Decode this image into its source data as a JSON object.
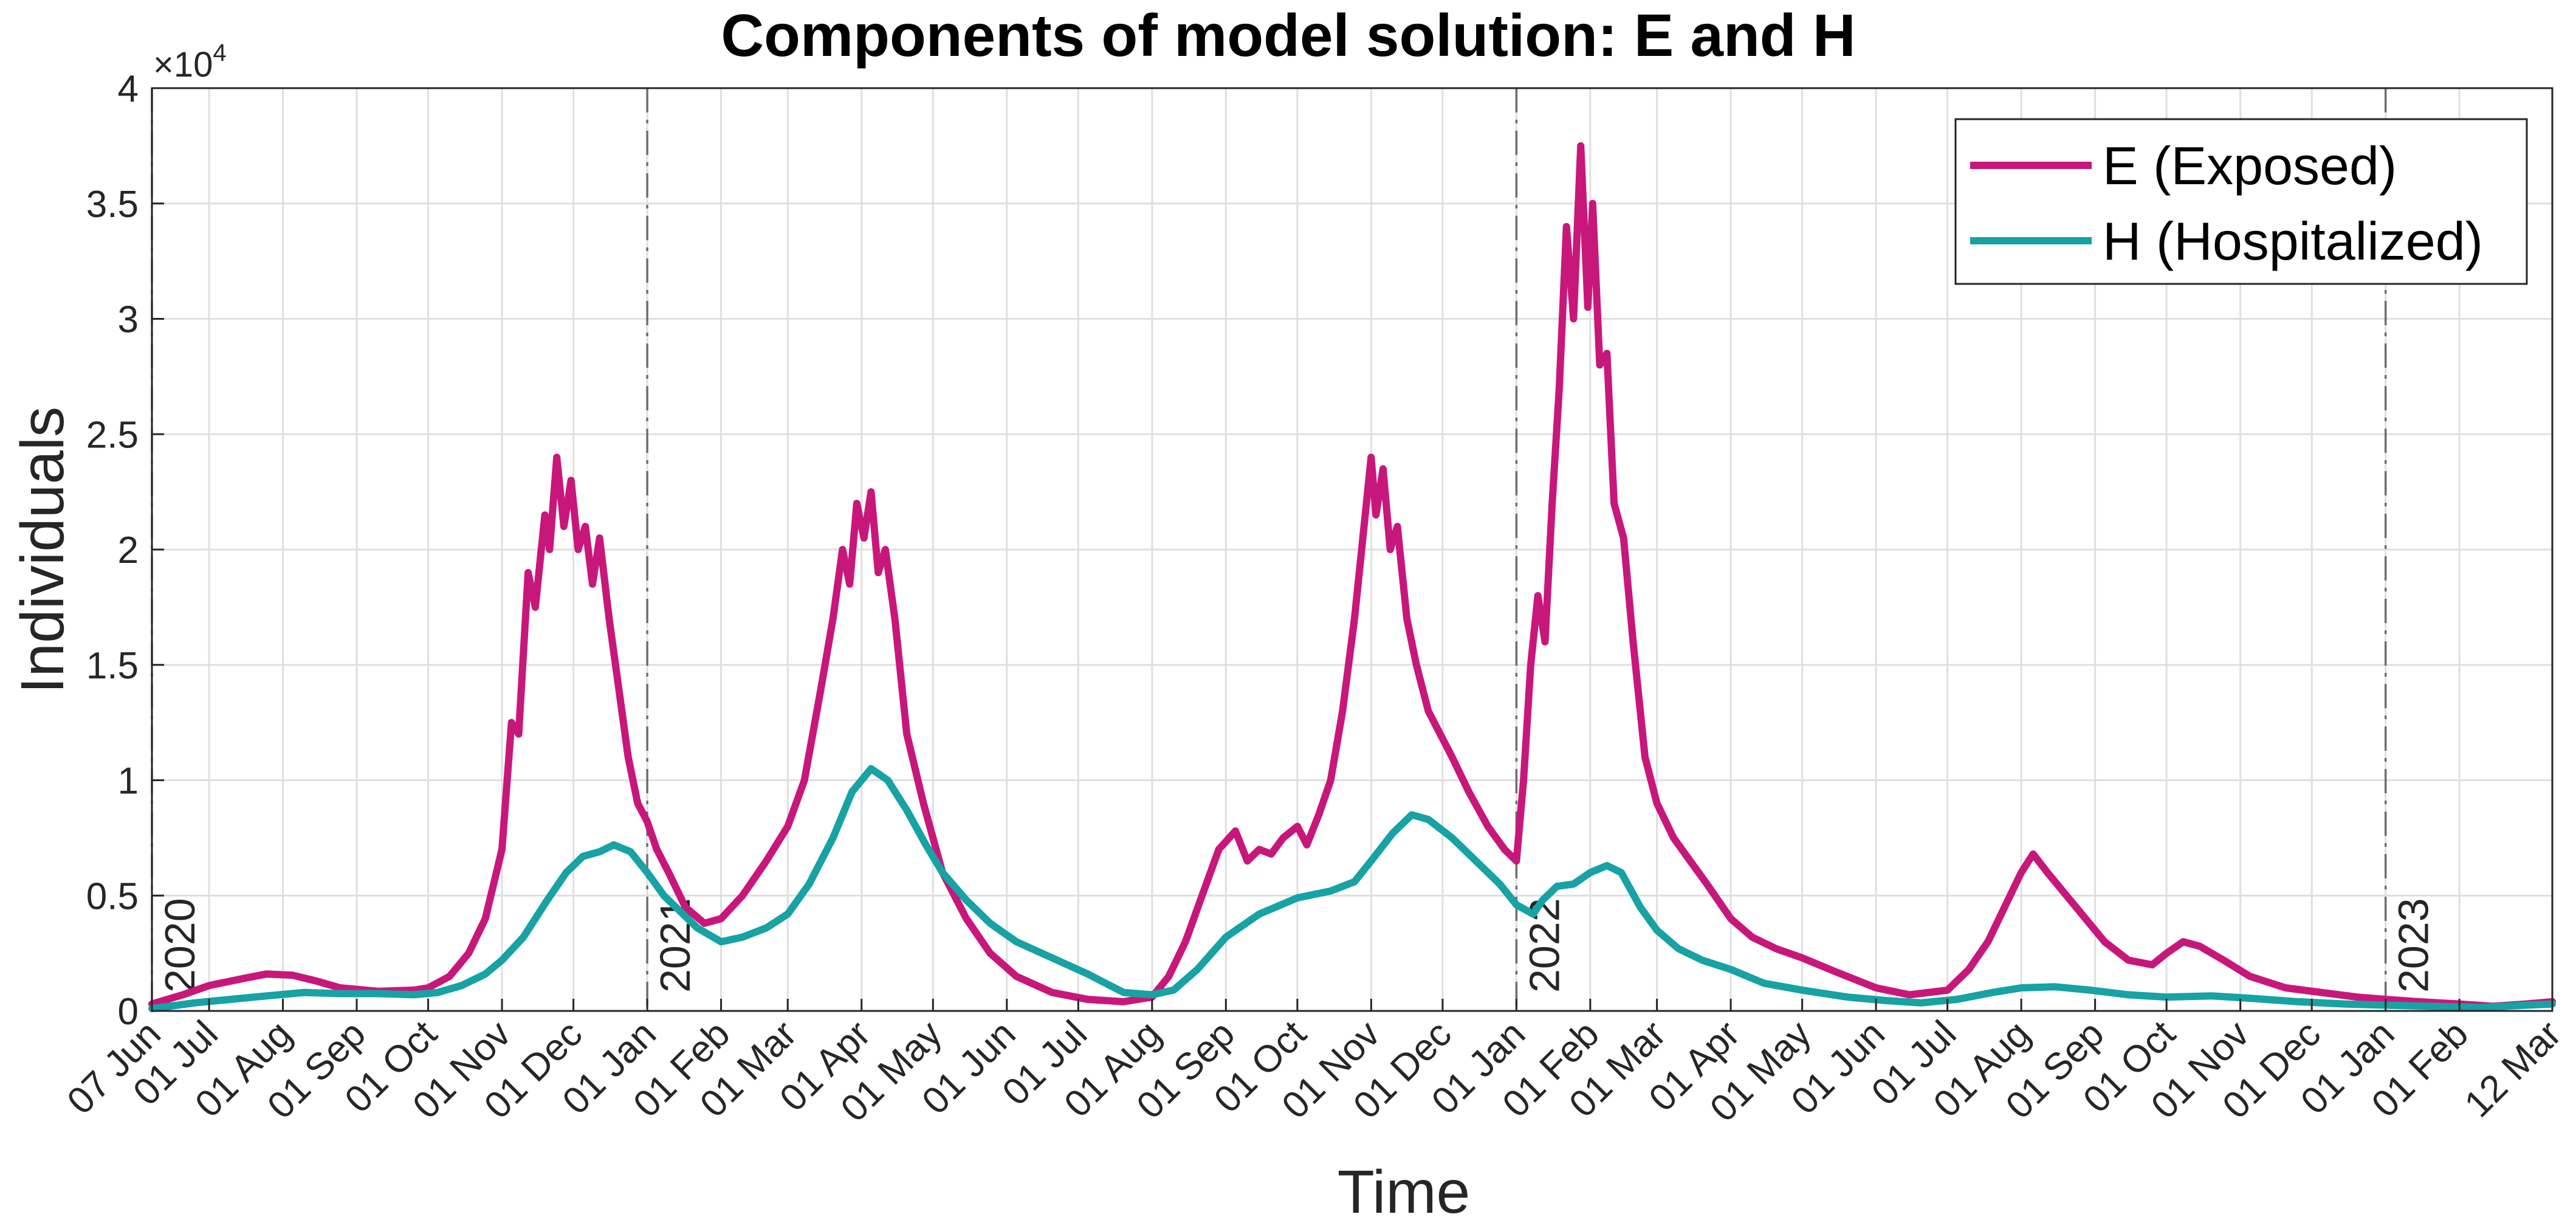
{
  "chart_data": {
    "type": "line",
    "title": "Components of model solution: E and H",
    "xlabel": "Time",
    "ylabel": "Individuals",
    "y_exponent_label": "×10",
    "y_exponent_power": "4",
    "ylim": [
      0,
      40000
    ],
    "yticks": [
      0,
      5000,
      10000,
      15000,
      20000,
      25000,
      30000,
      35000,
      40000
    ],
    "ytick_labels": [
      "0",
      "0.5",
      "1",
      "1.5",
      "2",
      "2.5",
      "3",
      "3.5",
      "4"
    ],
    "xlim": [
      "2020-06-07",
      "2023-03-12"
    ],
    "xticks": [
      "2020-06-07",
      "2020-07-01",
      "2020-08-01",
      "2020-09-01",
      "2020-10-01",
      "2020-11-01",
      "2020-12-01",
      "2021-01-01",
      "2021-02-01",
      "2021-03-01",
      "2021-04-01",
      "2021-05-01",
      "2021-06-01",
      "2021-07-01",
      "2021-08-01",
      "2021-09-01",
      "2021-10-01",
      "2021-11-01",
      "2021-12-01",
      "2022-01-01",
      "2022-02-01",
      "2022-03-01",
      "2022-04-01",
      "2022-05-01",
      "2022-06-01",
      "2022-07-01",
      "2022-08-01",
      "2022-09-01",
      "2022-10-01",
      "2022-11-01",
      "2022-12-01",
      "2023-01-01",
      "2023-02-01",
      "2023-03-12"
    ],
    "xtick_labels": [
      "07 Jun",
      "01 Jul",
      "01 Aug",
      "01 Sep",
      "01 Oct",
      "01 Nov",
      "01 Dec",
      "01 Jan",
      "01 Feb",
      "01 Mar",
      "01 Apr",
      "01 May",
      "01 Jun",
      "01 Jul",
      "01 Aug",
      "01 Sep",
      "01 Oct",
      "01 Nov",
      "01 Dec",
      "01 Jan",
      "01 Feb",
      "01 Mar",
      "01 Apr",
      "01 May",
      "01 Jun",
      "01 Jul",
      "01 Aug",
      "01 Sep",
      "01 Oct",
      "01 Nov",
      "01 Dec",
      "01 Jan",
      "01 Feb",
      "12 Mar"
    ],
    "year_markers": [
      {
        "date": "2020-06-07",
        "label": "2020"
      },
      {
        "date": "2021-01-01",
        "label": "2021"
      },
      {
        "date": "2022-01-01",
        "label": "2022"
      },
      {
        "date": "2023-01-01",
        "label": "2023"
      }
    ],
    "grid": true,
    "legend_position": "top-right",
    "series": [
      {
        "name": "E (Exposed)",
        "color": "#C8177A",
        "points": [
          [
            "2020-06-07",
            300
          ],
          [
            "2020-06-20",
            700
          ],
          [
            "2020-07-01",
            1100
          ],
          [
            "2020-07-15",
            1400
          ],
          [
            "2020-07-25",
            1600
          ],
          [
            "2020-08-05",
            1550
          ],
          [
            "2020-08-15",
            1300
          ],
          [
            "2020-08-25",
            1000
          ],
          [
            "2020-09-10",
            850
          ],
          [
            "2020-09-25",
            900
          ],
          [
            "2020-10-01",
            1000
          ],
          [
            "2020-10-10",
            1500
          ],
          [
            "2020-10-18",
            2500
          ],
          [
            "2020-10-25",
            4000
          ],
          [
            "2020-11-01",
            7000
          ],
          [
            "2020-11-05",
            12500
          ],
          [
            "2020-11-08",
            12000
          ],
          [
            "2020-11-12",
            19000
          ],
          [
            "2020-11-15",
            17500
          ],
          [
            "2020-11-19",
            21500
          ],
          [
            "2020-11-21",
            20000
          ],
          [
            "2020-11-24",
            24000
          ],
          [
            "2020-11-27",
            21000
          ],
          [
            "2020-11-30",
            23000
          ],
          [
            "2020-12-03",
            20000
          ],
          [
            "2020-12-06",
            21000
          ],
          [
            "2020-12-09",
            18500
          ],
          [
            "2020-12-12",
            20500
          ],
          [
            "2020-12-16",
            17000
          ],
          [
            "2020-12-20",
            14000
          ],
          [
            "2020-12-24",
            11000
          ],
          [
            "2020-12-28",
            9000
          ],
          [
            "2021-01-01",
            8200
          ],
          [
            "2021-01-05",
            7000
          ],
          [
            "2021-01-10",
            6000
          ],
          [
            "2021-01-17",
            4500
          ],
          [
            "2021-01-25",
            3800
          ],
          [
            "2021-02-01",
            4000
          ],
          [
            "2021-02-10",
            5000
          ],
          [
            "2021-02-20",
            6500
          ],
          [
            "2021-03-01",
            8000
          ],
          [
            "2021-03-08",
            10000
          ],
          [
            "2021-03-15",
            14000
          ],
          [
            "2021-03-20",
            17000
          ],
          [
            "2021-03-24",
            20000
          ],
          [
            "2021-03-27",
            18500
          ],
          [
            "2021-03-30",
            22000
          ],
          [
            "2021-04-02",
            20500
          ],
          [
            "2021-04-05",
            22500
          ],
          [
            "2021-04-08",
            19000
          ],
          [
            "2021-04-11",
            20000
          ],
          [
            "2021-04-15",
            17000
          ],
          [
            "2021-04-20",
            12000
          ],
          [
            "2021-04-27",
            9000
          ],
          [
            "2021-05-05",
            6000
          ],
          [
            "2021-05-15",
            4000
          ],
          [
            "2021-05-25",
            2500
          ],
          [
            "2021-06-05",
            1500
          ],
          [
            "2021-06-20",
            800
          ],
          [
            "2021-07-05",
            500
          ],
          [
            "2021-07-20",
            400
          ],
          [
            "2021-08-01",
            600
          ],
          [
            "2021-08-08",
            1500
          ],
          [
            "2021-08-15",
            3000
          ],
          [
            "2021-08-22",
            5000
          ],
          [
            "2021-08-29",
            7000
          ],
          [
            "2021-09-05",
            7800
          ],
          [
            "2021-09-10",
            6500
          ],
          [
            "2021-09-15",
            7000
          ],
          [
            "2021-09-20",
            6800
          ],
          [
            "2021-09-25",
            7500
          ],
          [
            "2021-10-01",
            8000
          ],
          [
            "2021-10-05",
            7200
          ],
          [
            "2021-10-10",
            8500
          ],
          [
            "2021-10-15",
            10000
          ],
          [
            "2021-10-20",
            13000
          ],
          [
            "2021-10-25",
            17000
          ],
          [
            "2021-10-28",
            20000
          ],
          [
            "2021-11-01",
            24000
          ],
          [
            "2021-11-03",
            21500
          ],
          [
            "2021-11-06",
            23500
          ],
          [
            "2021-11-09",
            20000
          ],
          [
            "2021-11-12",
            21000
          ],
          [
            "2021-11-16",
            17000
          ],
          [
            "2021-11-20",
            15000
          ],
          [
            "2021-11-25",
            13000
          ],
          [
            "2021-11-30",
            12000
          ],
          [
            "2021-12-05",
            11000
          ],
          [
            "2021-12-12",
            9500
          ],
          [
            "2021-12-20",
            8000
          ],
          [
            "2021-12-27",
            7000
          ],
          [
            "2022-01-01",
            6500
          ],
          [
            "2022-01-04",
            10000
          ],
          [
            "2022-01-07",
            15000
          ],
          [
            "2022-01-10",
            18000
          ],
          [
            "2022-01-13",
            16000
          ],
          [
            "2022-01-16",
            22000
          ],
          [
            "2022-01-19",
            27000
          ],
          [
            "2022-01-22",
            34000
          ],
          [
            "2022-01-25",
            30000
          ],
          [
            "2022-01-28",
            37500
          ],
          [
            "2022-01-31",
            30500
          ],
          [
            "2022-02-02",
            35000
          ],
          [
            "2022-02-05",
            28000
          ],
          [
            "2022-02-08",
            28500
          ],
          [
            "2022-02-11",
            22000
          ],
          [
            "2022-02-15",
            20500
          ],
          [
            "2022-02-19",
            16000
          ],
          [
            "2022-02-24",
            11000
          ],
          [
            "2022-03-01",
            9000
          ],
          [
            "2022-03-08",
            7500
          ],
          [
            "2022-03-15",
            6500
          ],
          [
            "2022-03-22",
            5500
          ],
          [
            "2022-04-01",
            4000
          ],
          [
            "2022-04-10",
            3200
          ],
          [
            "2022-04-20",
            2700
          ],
          [
            "2022-05-01",
            2300
          ],
          [
            "2022-05-15",
            1700
          ],
          [
            "2022-06-01",
            1000
          ],
          [
            "2022-06-15",
            700
          ],
          [
            "2022-07-01",
            900
          ],
          [
            "2022-07-10",
            1800
          ],
          [
            "2022-07-18",
            3000
          ],
          [
            "2022-07-25",
            4500
          ],
          [
            "2022-08-01",
            6000
          ],
          [
            "2022-08-06",
            6800
          ],
          [
            "2022-08-12",
            6000
          ],
          [
            "2022-08-20",
            5000
          ],
          [
            "2022-08-28",
            4000
          ],
          [
            "2022-09-05",
            3000
          ],
          [
            "2022-09-15",
            2200
          ],
          [
            "2022-09-25",
            2000
          ],
          [
            "2022-10-01",
            2500
          ],
          [
            "2022-10-08",
            3000
          ],
          [
            "2022-10-15",
            2800
          ],
          [
            "2022-10-25",
            2200
          ],
          [
            "2022-11-05",
            1500
          ],
          [
            "2022-11-20",
            1000
          ],
          [
            "2022-12-05",
            800
          ],
          [
            "2022-12-20",
            600
          ],
          [
            "2023-01-01",
            500
          ],
          [
            "2023-01-15",
            400
          ],
          [
            "2023-02-01",
            300
          ],
          [
            "2023-02-15",
            200
          ],
          [
            "2023-03-01",
            300
          ],
          [
            "2023-03-12",
            400
          ]
        ]
      },
      {
        "name": "H (Hospitalized)",
        "color": "#17A2A4",
        "points": [
          [
            "2020-06-07",
            100
          ],
          [
            "2020-06-25",
            350
          ],
          [
            "2020-07-10",
            500
          ],
          [
            "2020-07-25",
            650
          ],
          [
            "2020-08-10",
            800
          ],
          [
            "2020-08-25",
            750
          ],
          [
            "2020-09-10",
            750
          ],
          [
            "2020-09-25",
            700
          ],
          [
            "2020-10-05",
            800
          ],
          [
            "2020-10-15",
            1100
          ],
          [
            "2020-10-25",
            1600
          ],
          [
            "2020-11-01",
            2200
          ],
          [
            "2020-11-10",
            3200
          ],
          [
            "2020-11-20",
            4800
          ],
          [
            "2020-11-28",
            6000
          ],
          [
            "2020-12-05",
            6700
          ],
          [
            "2020-12-12",
            6900
          ],
          [
            "2020-12-18",
            7200
          ],
          [
            "2020-12-25",
            6900
          ],
          [
            "2021-01-01",
            6000
          ],
          [
            "2021-01-08",
            5000
          ],
          [
            "2021-01-15",
            4300
          ],
          [
            "2021-01-22",
            3600
          ],
          [
            "2021-02-01",
            3000
          ],
          [
            "2021-02-10",
            3200
          ],
          [
            "2021-02-20",
            3600
          ],
          [
            "2021-03-01",
            4200
          ],
          [
            "2021-03-10",
            5500
          ],
          [
            "2021-03-20",
            7500
          ],
          [
            "2021-03-28",
            9500
          ],
          [
            "2021-04-05",
            10500
          ],
          [
            "2021-04-12",
            10000
          ],
          [
            "2021-04-20",
            8700
          ],
          [
            "2021-04-28",
            7200
          ],
          [
            "2021-05-05",
            6000
          ],
          [
            "2021-05-15",
            4800
          ],
          [
            "2021-05-25",
            3800
          ],
          [
            "2021-06-05",
            3000
          ],
          [
            "2021-06-20",
            2300
          ],
          [
            "2021-07-05",
            1600
          ],
          [
            "2021-07-20",
            800
          ],
          [
            "2021-08-01",
            700
          ],
          [
            "2021-08-10",
            900
          ],
          [
            "2021-08-20",
            1800
          ],
          [
            "2021-09-01",
            3200
          ],
          [
            "2021-09-15",
            4200
          ],
          [
            "2021-10-01",
            4900
          ],
          [
            "2021-10-15",
            5200
          ],
          [
            "2021-10-25",
            5600
          ],
          [
            "2021-11-01",
            6500
          ],
          [
            "2021-11-10",
            7700
          ],
          [
            "2021-11-18",
            8500
          ],
          [
            "2021-11-25",
            8300
          ],
          [
            "2021-12-05",
            7500
          ],
          [
            "2021-12-15",
            6500
          ],
          [
            "2021-12-25",
            5500
          ],
          [
            "2022-01-01",
            4600
          ],
          [
            "2022-01-08",
            4200
          ],
          [
            "2022-01-12",
            4800
          ],
          [
            "2022-01-18",
            5400
          ],
          [
            "2022-01-25",
            5500
          ],
          [
            "2022-02-01",
            6000
          ],
          [
            "2022-02-08",
            6300
          ],
          [
            "2022-02-14",
            6000
          ],
          [
            "2022-02-22",
            4500
          ],
          [
            "2022-03-01",
            3500
          ],
          [
            "2022-03-10",
            2700
          ],
          [
            "2022-03-20",
            2200
          ],
          [
            "2022-04-01",
            1800
          ],
          [
            "2022-04-15",
            1200
          ],
          [
            "2022-05-01",
            900
          ],
          [
            "2022-05-20",
            600
          ],
          [
            "2022-06-05",
            450
          ],
          [
            "2022-06-20",
            350
          ],
          [
            "2022-07-05",
            500
          ],
          [
            "2022-07-20",
            800
          ],
          [
            "2022-08-01",
            1000
          ],
          [
            "2022-08-15",
            1050
          ],
          [
            "2022-08-30",
            900
          ],
          [
            "2022-09-15",
            700
          ],
          [
            "2022-10-01",
            600
          ],
          [
            "2022-10-20",
            650
          ],
          [
            "2022-11-05",
            550
          ],
          [
            "2022-11-25",
            400
          ],
          [
            "2022-12-15",
            300
          ],
          [
            "2023-01-01",
            250
          ],
          [
            "2023-01-20",
            200
          ],
          [
            "2023-02-10",
            150
          ],
          [
            "2023-03-01",
            250
          ],
          [
            "2023-03-12",
            300
          ]
        ]
      }
    ]
  }
}
